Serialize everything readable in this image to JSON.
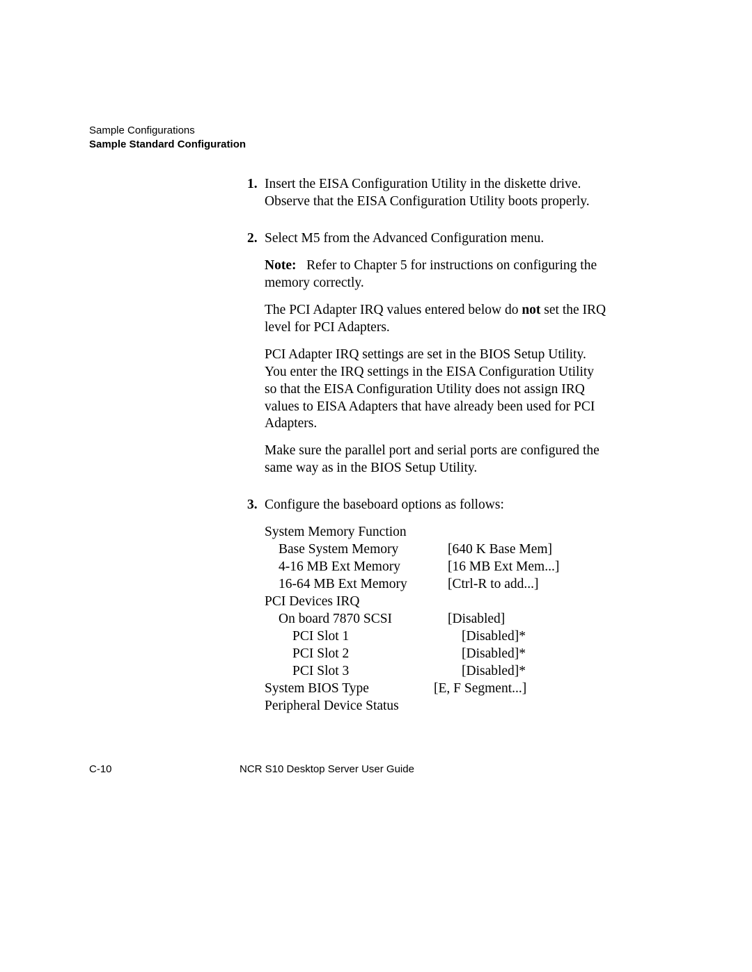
{
  "header": {
    "line1": "Sample Configurations",
    "line2": "Sample Standard Configuration"
  },
  "list": {
    "item1": {
      "num": "1.",
      "text": "Insert the EISA Configuration Utility in the diskette drive. Observe that the EISA Configuration Utility boots properly."
    },
    "item2": {
      "num": "2.",
      "text": "Select M5 from the Advanced Configuration menu.",
      "note_label": "Note:",
      "note_text": "Refer to Chapter 5 for instructions on configuring the memory correctly.",
      "pci_a": "The PCI Adapter IRQ values entered below do ",
      "pci_not": "not",
      "pci_b": " set the IRQ level for PCI Adapters.",
      "pci_long": "PCI Adapter IRQ settings are set in the BIOS Setup Utility. You enter the IRQ settings in the EISA Configuration Utility so that the EISA Configuration Utility does not assign IRQ values to EISA Adapters that have already been used for PCI Adapters.",
      "parallel": "Make sure the parallel port and serial ports are configured the same way as in the BIOS Setup Utility."
    },
    "item3": {
      "num": "3.",
      "text": "Configure the baseboard options as follows:"
    }
  },
  "config": {
    "r0": {
      "label": "System Memory Function",
      "value": ""
    },
    "r1": {
      "label": "Base System Memory",
      "value": "[640 K Base Mem]"
    },
    "r2": {
      "label": "4-16 MB Ext Memory",
      "value": "[16 MB Ext Mem...]"
    },
    "r3": {
      "label": "16-64 MB Ext Memory",
      "value": "[Ctrl-R to add...]"
    },
    "r4": {
      "label": "PCI Devices IRQ",
      "value": ""
    },
    "r5": {
      "label": "On board 7870 SCSI",
      "value": "[Disabled]"
    },
    "r6": {
      "label": "PCI Slot 1",
      "value": "[Disabled]*"
    },
    "r7": {
      "label": "PCI Slot 2",
      "value": "[Disabled]*"
    },
    "r8": {
      "label": "PCI Slot 3",
      "value": "[Disabled]*"
    },
    "r9": {
      "label": "System BIOS Type",
      "value": "[E, F Segment...]"
    },
    "r10": {
      "label": "Peripheral Device Status",
      "value": ""
    }
  },
  "footer": {
    "page": "C-10",
    "title": "NCR S10 Desktop Server User Guide"
  }
}
